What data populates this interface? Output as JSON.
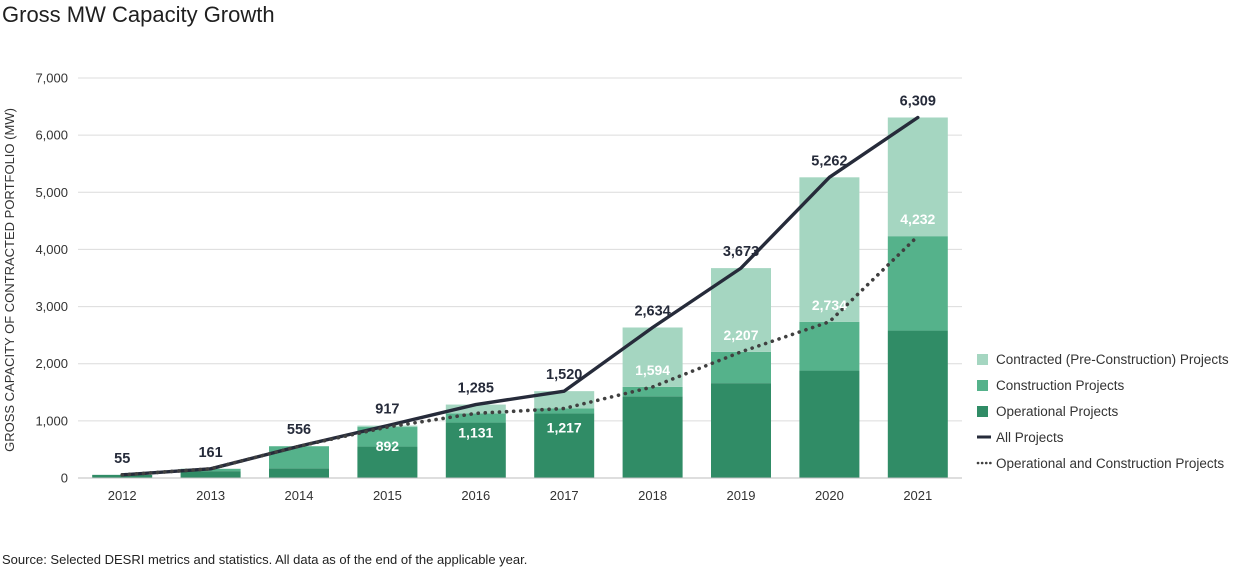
{
  "title": "Gross MW Capacity Growth",
  "source": "Source: Selected DESRI metrics and statistics. All data as of the end of the applicable year.",
  "colors": {
    "operational": "#308c66",
    "construction": "#55b28b",
    "contracted": "#a5d6c1",
    "all_line": "#262b3a",
    "op_con_line": "#404040",
    "grid": "#dcdcdc"
  },
  "chart_data": {
    "type": "bar",
    "title": "Gross MW Capacity Growth",
    "xlabel": "",
    "ylabel": "GROSS CAPACITY OF CONTRACTED PORTFOLIO (MW)",
    "ylim": [
      0,
      7000
    ],
    "yticks": [
      0,
      1000,
      2000,
      3000,
      4000,
      5000,
      6000,
      7000
    ],
    "ytick_labels": [
      "0",
      "1,000",
      "2,000",
      "3,000",
      "4,000",
      "5,000",
      "6,000",
      "7,000"
    ],
    "categories": [
      "2012",
      "2013",
      "2014",
      "2015",
      "2016",
      "2017",
      "2018",
      "2019",
      "2020",
      "2021"
    ],
    "stacked": true,
    "grid": true,
    "legend_position": "right",
    "series": [
      {
        "name": "Operational Projects",
        "kind": "bar",
        "color_key": "operational",
        "values": [
          55,
          120,
          170,
          550,
          970,
          1130,
          1430,
          1660,
          1880,
          2580
        ]
      },
      {
        "name": "Construction Projects",
        "kind": "bar",
        "color_key": "construction",
        "values": [
          0,
          41,
          386,
          342,
          161,
          87,
          164,
          547,
          854,
          1652
        ]
      },
      {
        "name": "Contracted (Pre‐Construction) Projects",
        "kind": "bar",
        "color_key": "contracted",
        "values": [
          0,
          0,
          0,
          25,
          154,
          303,
          1040,
          1466,
          2528,
          2077
        ]
      },
      {
        "name": "All Projects",
        "kind": "line",
        "style": "solid",
        "color_key": "all_line",
        "values": [
          55,
          161,
          556,
          917,
          1285,
          1520,
          2634,
          3673,
          5262,
          6309
        ]
      },
      {
        "name": "Operational and Construction Projects",
        "kind": "line",
        "style": "dotted",
        "color_key": "op_con_line",
        "values": [
          55,
          161,
          556,
          892,
          1131,
          1217,
          1594,
          2207,
          2734,
          4232
        ]
      }
    ],
    "labels_all": [
      "55",
      "161",
      "556",
      "917",
      "1,285",
      "1,520",
      "2,634",
      "3,673",
      "5,262",
      "6,309"
    ],
    "labels_opcon": [
      {
        "index": 3,
        "text": "892",
        "value": 892
      },
      {
        "index": 4,
        "text": "1,131",
        "value": 1131
      },
      {
        "index": 5,
        "text": "1,217",
        "value": 1217
      },
      {
        "index": 6,
        "text": "1,594",
        "value": 1594
      },
      {
        "index": 7,
        "text": "2,207",
        "value": 2207
      },
      {
        "index": 8,
        "text": "2,734",
        "value": 2734
      },
      {
        "index": 9,
        "text": "4,232",
        "value": 4232
      }
    ],
    "legend": [
      {
        "label": "Contracted (Pre‐Construction) Projects",
        "kind": "swatch",
        "color_key": "contracted"
      },
      {
        "label": "Construction Projects",
        "kind": "swatch",
        "color_key": "construction"
      },
      {
        "label": "Operational Projects",
        "kind": "swatch",
        "color_key": "operational"
      },
      {
        "label": "All Projects",
        "kind": "line",
        "color_key": "all_line"
      },
      {
        "label": "Operational and Construction Projects",
        "kind": "dotted",
        "color_key": "op_con_line"
      }
    ]
  }
}
